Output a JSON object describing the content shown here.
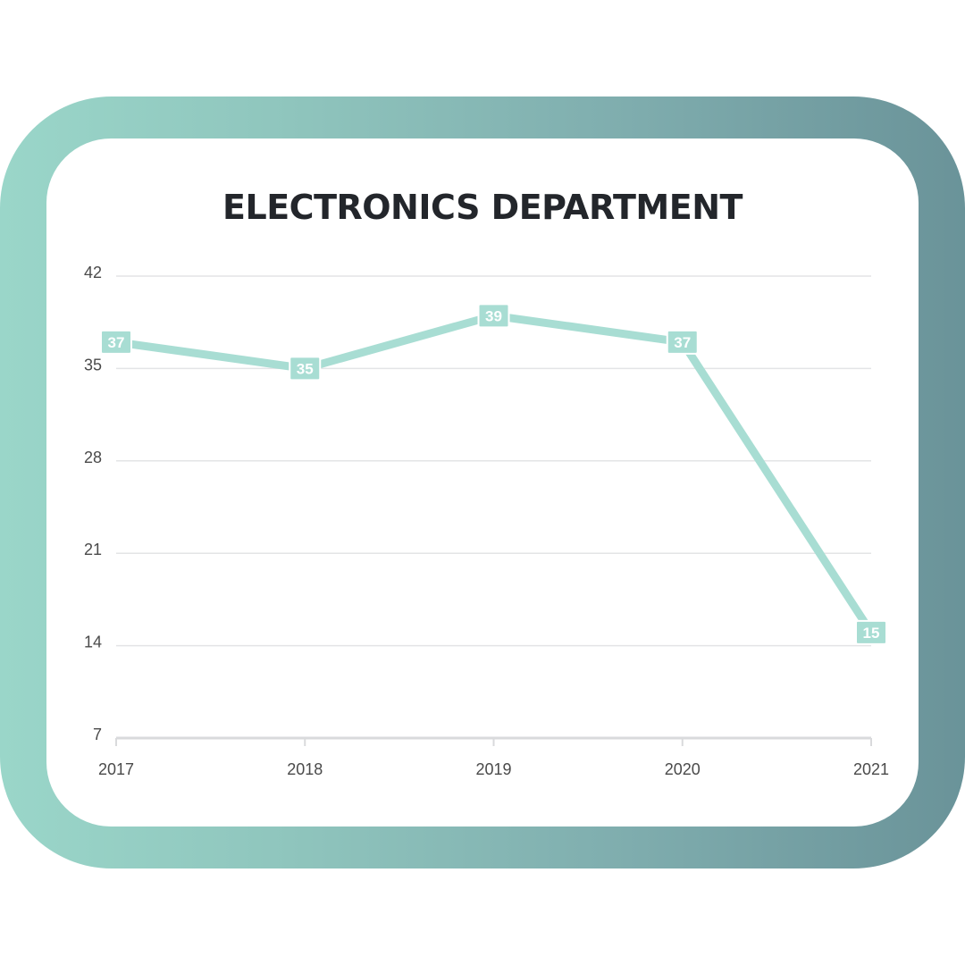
{
  "chart_data": {
    "type": "line",
    "title": "ELECTRONICS DEPARTMENT",
    "xlabel": "",
    "ylabel": "",
    "categories": [
      "2017",
      "2018",
      "2019",
      "2020",
      "2021"
    ],
    "series": [
      {
        "values": [
          37,
          35,
          39,
          37,
          15
        ]
      }
    ],
    "ylim": [
      7,
      42
    ],
    "yticks": [
      7,
      14,
      21,
      28,
      35,
      42
    ],
    "grid": true,
    "data_labels": true,
    "line_color": "#a8ddd3",
    "label_color": "#ffffff"
  }
}
